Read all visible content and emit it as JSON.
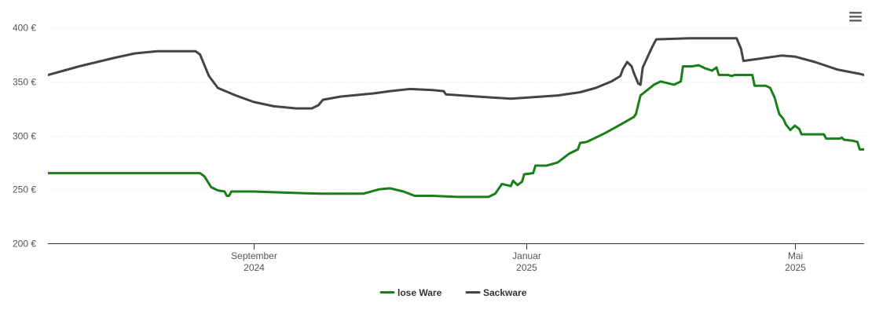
{
  "chart_data": {
    "type": "line",
    "title": "",
    "xlabel": "",
    "ylabel": "",
    "y_unit": "€",
    "ylim": [
      200,
      400
    ],
    "y_ticks": [
      {
        "value": 400,
        "label": "400 €"
      },
      {
        "value": 350,
        "label": "350 €"
      },
      {
        "value": 300,
        "label": "300 €"
      },
      {
        "value": 250,
        "label": "250 €"
      },
      {
        "value": 200,
        "label": "200 €"
      }
    ],
    "xlim": [
      "2024-06-01",
      "2025-06-01"
    ],
    "x_ticks": [
      {
        "date": "2024-09-01",
        "label_month": "September",
        "label_year": "2024"
      },
      {
        "date": "2025-01-01",
        "label_month": "Januar",
        "label_year": "2025"
      },
      {
        "date": "2025-05-01",
        "label_month": "Mai",
        "label_year": "2025"
      }
    ],
    "grid": true,
    "legend_position": "bottom-center",
    "series": [
      {
        "name": "lose Ware",
        "color": "#1a7f1a",
        "points": [
          [
            "2024-06-01",
            265
          ],
          [
            "2024-06-15",
            265
          ],
          [
            "2024-07-01",
            265
          ],
          [
            "2024-07-15",
            265
          ],
          [
            "2024-08-01",
            265
          ],
          [
            "2024-08-08",
            265
          ],
          [
            "2024-08-10",
            262
          ],
          [
            "2024-08-13",
            252
          ],
          [
            "2024-08-16",
            249
          ],
          [
            "2024-08-19",
            248
          ],
          [
            "2024-08-20",
            244
          ],
          [
            "2024-08-21",
            244
          ],
          [
            "2024-08-22",
            248
          ],
          [
            "2024-09-01",
            248
          ],
          [
            "2024-09-15",
            247
          ],
          [
            "2024-10-01",
            246
          ],
          [
            "2024-10-15",
            246
          ],
          [
            "2024-10-20",
            246
          ],
          [
            "2024-10-27",
            250
          ],
          [
            "2024-11-01",
            251
          ],
          [
            "2024-11-07",
            248
          ],
          [
            "2024-11-12",
            244
          ],
          [
            "2024-11-20",
            244
          ],
          [
            "2024-12-01",
            243
          ],
          [
            "2024-12-10",
            243
          ],
          [
            "2024-12-15",
            243
          ],
          [
            "2024-12-18",
            246
          ],
          [
            "2024-12-21",
            255
          ],
          [
            "2024-12-25",
            253
          ],
          [
            "2024-12-26",
            258
          ],
          [
            "2024-12-28",
            254
          ],
          [
            "2024-12-30",
            257
          ],
          [
            "2024-12-31",
            264
          ],
          [
            "2025-01-04",
            265
          ],
          [
            "2025-01-05",
            272
          ],
          [
            "2025-01-10",
            272
          ],
          [
            "2025-01-15",
            275
          ],
          [
            "2025-01-20",
            283
          ],
          [
            "2025-01-24",
            287
          ],
          [
            "2025-01-25",
            293
          ],
          [
            "2025-01-28",
            294
          ],
          [
            "2025-02-05",
            302
          ],
          [
            "2025-02-12",
            310
          ],
          [
            "2025-02-18",
            317
          ],
          [
            "2025-02-19",
            320
          ],
          [
            "2025-02-21",
            337
          ],
          [
            "2025-02-24",
            342
          ],
          [
            "2025-02-27",
            347
          ],
          [
            "2025-03-02",
            350
          ],
          [
            "2025-03-08",
            347
          ],
          [
            "2025-03-11",
            350
          ],
          [
            "2025-03-12",
            364
          ],
          [
            "2025-03-16",
            364
          ],
          [
            "2025-03-19",
            365
          ],
          [
            "2025-03-22",
            362
          ],
          [
            "2025-03-25",
            360
          ],
          [
            "2025-03-27",
            363
          ],
          [
            "2025-03-28",
            356
          ],
          [
            "2025-04-01",
            356
          ],
          [
            "2025-04-03",
            355
          ],
          [
            "2025-04-04",
            356
          ],
          [
            "2025-04-12",
            356
          ],
          [
            "2025-04-13",
            346
          ],
          [
            "2025-04-18",
            346
          ],
          [
            "2025-04-20",
            344
          ],
          [
            "2025-04-22",
            335
          ],
          [
            "2025-04-24",
            320
          ],
          [
            "2025-04-26",
            315
          ],
          [
            "2025-04-27",
            310
          ],
          [
            "2025-04-29",
            305
          ],
          [
            "2025-05-01",
            309
          ],
          [
            "2025-05-03",
            306
          ],
          [
            "2025-05-04",
            301
          ],
          [
            "2025-05-14",
            301
          ],
          [
            "2025-05-15",
            297
          ],
          [
            "2025-05-21",
            297
          ],
          [
            "2025-05-22",
            298
          ],
          [
            "2025-05-23",
            296
          ],
          [
            "2025-05-27",
            295
          ],
          [
            "2025-05-29",
            294
          ],
          [
            "2025-05-30",
            287
          ],
          [
            "2025-06-06",
            287
          ],
          [
            "2025-06-12",
            285
          ],
          [
            "2025-06-16",
            281
          ]
        ]
      },
      {
        "name": "Sackware",
        "color": "#434348",
        "points": [
          [
            "2024-06-01",
            356
          ],
          [
            "2024-06-15",
            364
          ],
          [
            "2024-07-01",
            372
          ],
          [
            "2024-07-10",
            376
          ],
          [
            "2024-07-20",
            378
          ],
          [
            "2024-08-01",
            378
          ],
          [
            "2024-08-06",
            378
          ],
          [
            "2024-08-08",
            375
          ],
          [
            "2024-08-12",
            355
          ],
          [
            "2024-08-16",
            344
          ],
          [
            "2024-08-24",
            337
          ],
          [
            "2024-09-01",
            331
          ],
          [
            "2024-09-10",
            327
          ],
          [
            "2024-09-20",
            325
          ],
          [
            "2024-09-27",
            325
          ],
          [
            "2024-09-30",
            328
          ],
          [
            "2024-10-02",
            333
          ],
          [
            "2024-10-10",
            336
          ],
          [
            "2024-10-25",
            339
          ],
          [
            "2024-11-01",
            341
          ],
          [
            "2024-11-10",
            343
          ],
          [
            "2024-11-20",
            342
          ],
          [
            "2024-11-25",
            341
          ],
          [
            "2024-11-26",
            338
          ],
          [
            "2024-12-10",
            336
          ],
          [
            "2024-12-25",
            334
          ],
          [
            "2025-01-01",
            335
          ],
          [
            "2025-01-15",
            337
          ],
          [
            "2025-01-25",
            340
          ],
          [
            "2025-02-01",
            344
          ],
          [
            "2025-02-08",
            350
          ],
          [
            "2025-02-12",
            355
          ],
          [
            "2025-02-13",
            361
          ],
          [
            "2025-02-15",
            368
          ],
          [
            "2025-02-17",
            364
          ],
          [
            "2025-02-18",
            358
          ],
          [
            "2025-02-20",
            348
          ],
          [
            "2025-02-21",
            347
          ],
          [
            "2025-02-22",
            363
          ],
          [
            "2025-02-24",
            372
          ],
          [
            "2025-02-26",
            381
          ],
          [
            "2025-02-28",
            389
          ],
          [
            "2025-03-15",
            390
          ],
          [
            "2025-04-01",
            390
          ],
          [
            "2025-04-05",
            390
          ],
          [
            "2025-04-07",
            380
          ],
          [
            "2025-04-08",
            369
          ],
          [
            "2025-04-15",
            371
          ],
          [
            "2025-04-25",
            374
          ],
          [
            "2025-05-01",
            373
          ],
          [
            "2025-05-10",
            368
          ],
          [
            "2025-05-20",
            361
          ],
          [
            "2025-05-30",
            357
          ],
          [
            "2025-06-05",
            354
          ],
          [
            "2025-06-13",
            346
          ],
          [
            "2025-06-16",
            342
          ]
        ]
      }
    ]
  },
  "menu": {
    "icon": "hamburger-menu-icon",
    "color": "#666666"
  }
}
